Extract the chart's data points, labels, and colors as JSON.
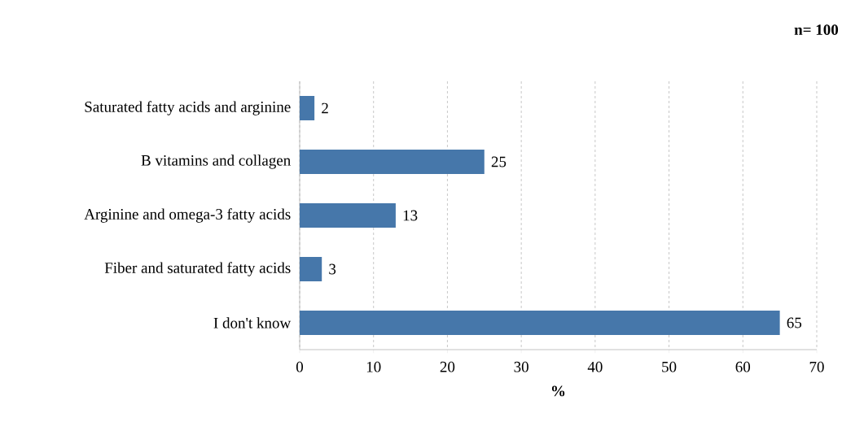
{
  "chart_data": {
    "type": "bar",
    "orientation": "horizontal",
    "categories": [
      "Saturated fatty acids and arginine",
      "B vitamins and collagen",
      "Arginine and omega-3 fatty acids",
      "Fiber and saturated fatty acids",
      "I don't know"
    ],
    "values": [
      2,
      25,
      13,
      3,
      65
    ],
    "color": "#4677aa",
    "xlabel": "%",
    "xlim": [
      0,
      70
    ],
    "xticks": [
      0,
      10,
      20,
      30,
      40,
      50,
      60,
      70
    ],
    "grid": "x",
    "data_labels": true,
    "annotations": [
      "n= 100"
    ]
  }
}
